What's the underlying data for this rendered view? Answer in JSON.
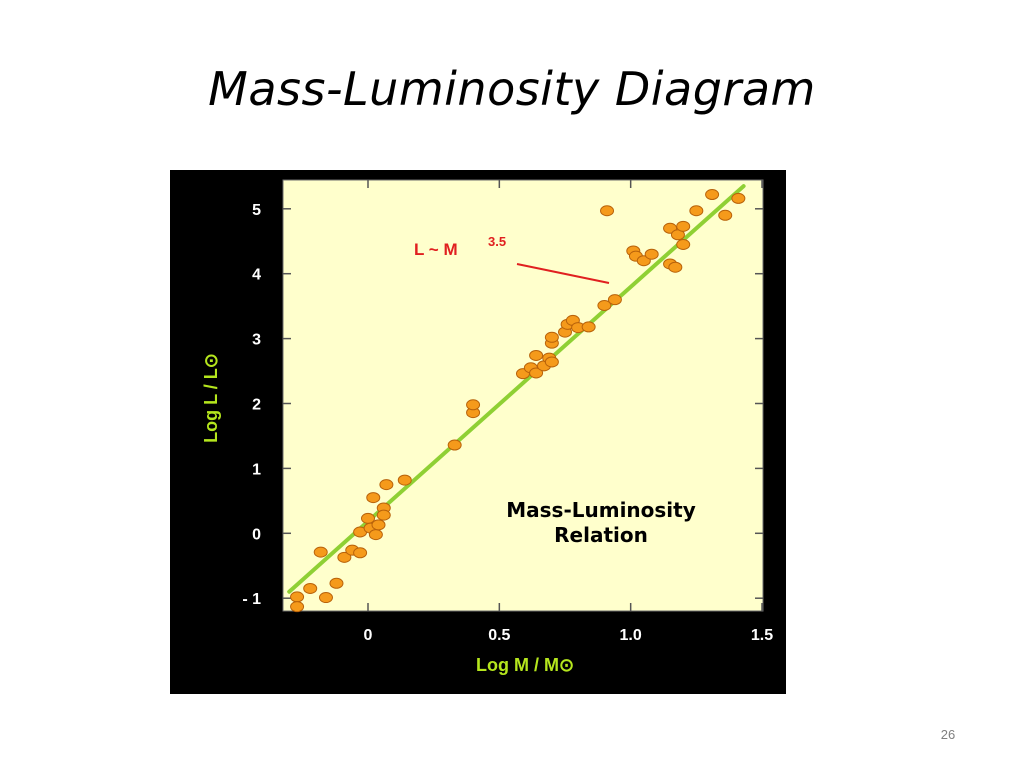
{
  "slide": {
    "title": "Mass-Luminosity Diagram",
    "page_number": "26"
  },
  "chart_data": {
    "type": "scatter",
    "title": "",
    "xlabel": "Log M / M⊙",
    "ylabel": "Log L / L⊙",
    "xlim": [
      -0.3,
      1.5
    ],
    "ylim": [
      -1.2,
      5.5
    ],
    "xticks": [
      0,
      0.5,
      1.0,
      1.5
    ],
    "xtick_labels": [
      "0",
      "0.5",
      "1.0",
      "1.5"
    ],
    "yticks": [
      -1,
      0,
      1,
      2,
      3,
      4,
      5
    ],
    "ytick_labels": [
      "- 1",
      "0",
      "1",
      "2",
      "3",
      "4",
      "5"
    ],
    "inset_text": [
      "Mass-Luminosity",
      "Relation"
    ],
    "annotation": {
      "text": "L ~ M",
      "exponent": "3.5"
    },
    "fit_line": {
      "x": [
        -0.3,
        1.43
      ],
      "y": [
        -0.9,
        5.35
      ]
    },
    "points": [
      {
        "x": -0.27,
        "y": -0.98
      },
      {
        "x": -0.27,
        "y": -1.13
      },
      {
        "x": -0.22,
        "y": -0.85
      },
      {
        "x": -0.18,
        "y": -0.29
      },
      {
        "x": -0.16,
        "y": -0.99
      },
      {
        "x": -0.12,
        "y": -0.77
      },
      {
        "x": -0.09,
        "y": -0.37
      },
      {
        "x": -0.06,
        "y": -0.26
      },
      {
        "x": -0.03,
        "y": -0.3
      },
      {
        "x": -0.03,
        "y": 0.02
      },
      {
        "x": 0.0,
        "y": 0.23
      },
      {
        "x": 0.01,
        "y": 0.08
      },
      {
        "x": 0.02,
        "y": 0.55
      },
      {
        "x": 0.03,
        "y": -0.02
      },
      {
        "x": 0.04,
        "y": 0.13
      },
      {
        "x": 0.06,
        "y": 0.39
      },
      {
        "x": 0.06,
        "y": 0.28
      },
      {
        "x": 0.07,
        "y": 0.75
      },
      {
        "x": 0.14,
        "y": 0.82
      },
      {
        "x": 0.33,
        "y": 1.36
      },
      {
        "x": 0.4,
        "y": 1.86
      },
      {
        "x": 0.4,
        "y": 1.98
      },
      {
        "x": 0.59,
        "y": 2.46
      },
      {
        "x": 0.62,
        "y": 2.55
      },
      {
        "x": 0.64,
        "y": 2.47
      },
      {
        "x": 0.64,
        "y": 2.74
      },
      {
        "x": 0.67,
        "y": 2.58
      },
      {
        "x": 0.69,
        "y": 2.7
      },
      {
        "x": 0.7,
        "y": 2.64
      },
      {
        "x": 0.7,
        "y": 2.93
      },
      {
        "x": 0.7,
        "y": 3.02
      },
      {
        "x": 0.75,
        "y": 3.1
      },
      {
        "x": 0.76,
        "y": 3.22
      },
      {
        "x": 0.78,
        "y": 3.28
      },
      {
        "x": 0.8,
        "y": 3.17
      },
      {
        "x": 0.84,
        "y": 3.18
      },
      {
        "x": 0.9,
        "y": 3.51
      },
      {
        "x": 0.91,
        "y": 4.97
      },
      {
        "x": 0.94,
        "y": 3.6
      },
      {
        "x": 1.01,
        "y": 4.35
      },
      {
        "x": 1.02,
        "y": 4.27
      },
      {
        "x": 1.05,
        "y": 4.2
      },
      {
        "x": 1.08,
        "y": 4.3
      },
      {
        "x": 1.15,
        "y": 4.15
      },
      {
        "x": 1.15,
        "y": 4.7
      },
      {
        "x": 1.17,
        "y": 4.1
      },
      {
        "x": 1.18,
        "y": 4.6
      },
      {
        "x": 1.2,
        "y": 4.73
      },
      {
        "x": 1.2,
        "y": 4.45
      },
      {
        "x": 1.25,
        "y": 4.97
      },
      {
        "x": 1.31,
        "y": 5.22
      },
      {
        "x": 1.36,
        "y": 4.9
      },
      {
        "x": 1.41,
        "y": 5.16
      }
    ],
    "grid": false,
    "colors": {
      "figure_background": "#000000",
      "plot_background": "#ffffcc",
      "points": "#f59a1b",
      "point_outline": "#b8620a",
      "fit_line": "#8fd034",
      "tick_labels": "#ffffff",
      "axis_labels": "#b5e61d",
      "annotation": "#e02020",
      "inset_text": "#000000"
    }
  }
}
